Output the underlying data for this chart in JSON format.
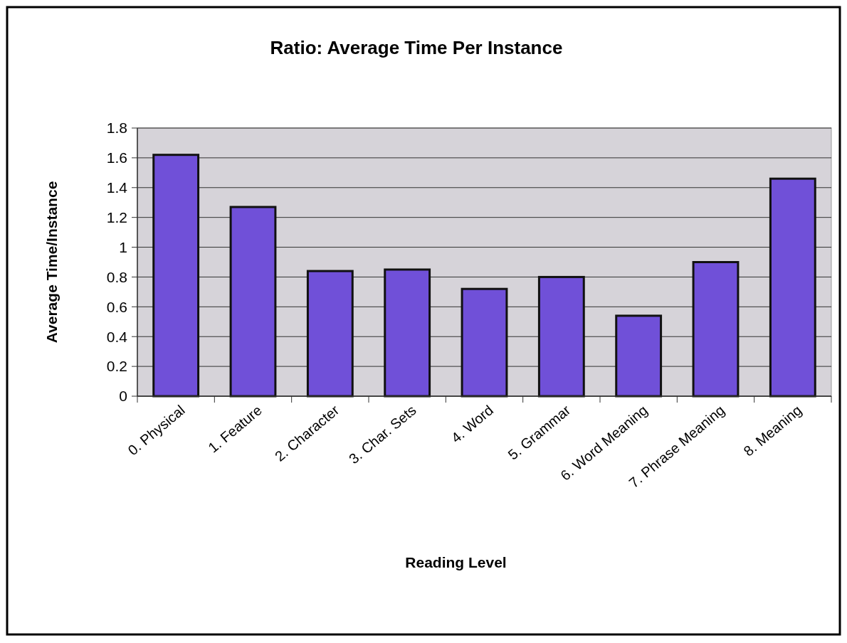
{
  "chart_data": {
    "type": "bar",
    "title": "Ratio: Average Time Per Instance",
    "xlabel": "Reading Level",
    "ylabel": "Average Time/Instance",
    "categories": [
      "0. Physical",
      "1. Feature",
      "2. Character",
      "3. Char. Sets",
      "4. Word",
      "5. Grammar",
      "6. Word Meaning",
      "7. Phrase Meaning",
      "8. Meaning"
    ],
    "values": [
      1.62,
      1.27,
      0.84,
      0.85,
      0.72,
      0.8,
      0.54,
      0.9,
      1.46
    ],
    "color": "#7050d8",
    "ylim": [
      0,
      1.8
    ],
    "yticks": [
      0,
      0.2,
      0.4,
      0.6,
      0.8,
      1,
      1.2,
      1.4,
      1.6,
      1.8
    ],
    "grid": "y"
  }
}
